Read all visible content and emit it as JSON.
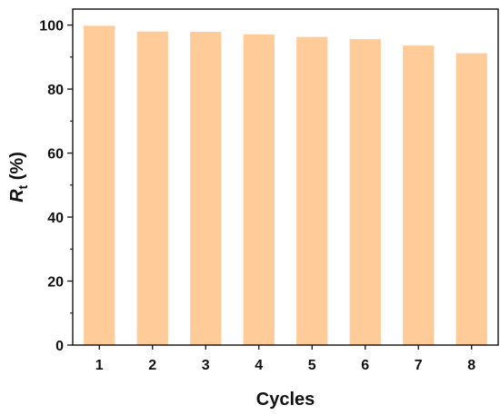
{
  "chart_data": {
    "type": "bar",
    "categories": [
      "1",
      "2",
      "3",
      "4",
      "5",
      "6",
      "7",
      "8"
    ],
    "values": [
      99.8,
      98.0,
      97.9,
      97.1,
      96.3,
      95.6,
      93.6,
      91.2
    ],
    "xlabel": "Cycles",
    "ylabel": {
      "main": "R",
      "sub": "t",
      "unit": " (%)"
    },
    "ylim": [
      0,
      105
    ],
    "yticks": [
      0,
      20,
      40,
      60,
      80,
      100
    ],
    "grid": false,
    "bar_color": "#ffcc99",
    "axis_color": "#111111"
  }
}
